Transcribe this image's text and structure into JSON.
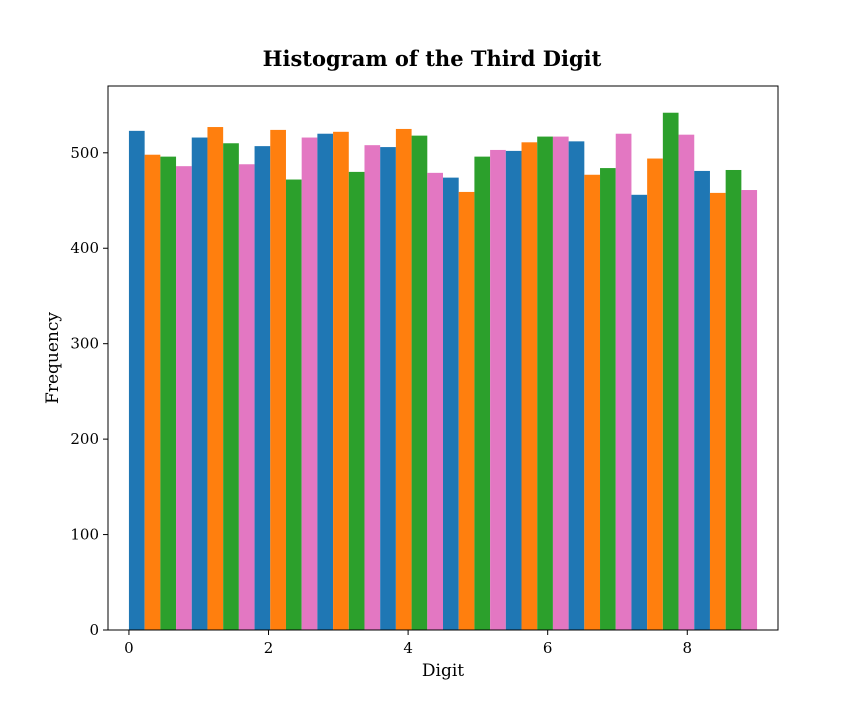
{
  "chart_data": {
    "type": "bar",
    "title": "Histogram of the Third Digit",
    "xlabel": "Digit",
    "ylabel": "Frequency",
    "xlim": [
      -0.3,
      9.3
    ],
    "ylim": [
      0,
      570
    ],
    "xticks": [
      0,
      2,
      4,
      6,
      8
    ],
    "yticks": [
      0,
      100,
      200,
      300,
      400,
      500
    ],
    "grid": false,
    "legend": "none",
    "bin_edges": [
      0,
      0.9,
      1.8,
      2.7,
      3.6,
      4.5,
      5.4,
      6.3,
      7.2,
      8.1,
      9.0
    ],
    "series": [
      {
        "color": "#1f77b4",
        "values": [
          523,
          516,
          507,
          520,
          506,
          474,
          502,
          512,
          456,
          481
        ]
      },
      {
        "color": "#ff7f0e",
        "values": [
          498,
          527,
          524,
          522,
          525,
          459,
          511,
          477,
          494,
          458
        ]
      },
      {
        "color": "#2ca02c",
        "values": [
          496,
          510,
          472,
          480,
          518,
          496,
          517,
          484,
          542,
          482
        ]
      },
      {
        "color": "#e377c2",
        "values": [
          486,
          488,
          516,
          508,
          479,
          503,
          517,
          520,
          519,
          461
        ]
      }
    ]
  }
}
